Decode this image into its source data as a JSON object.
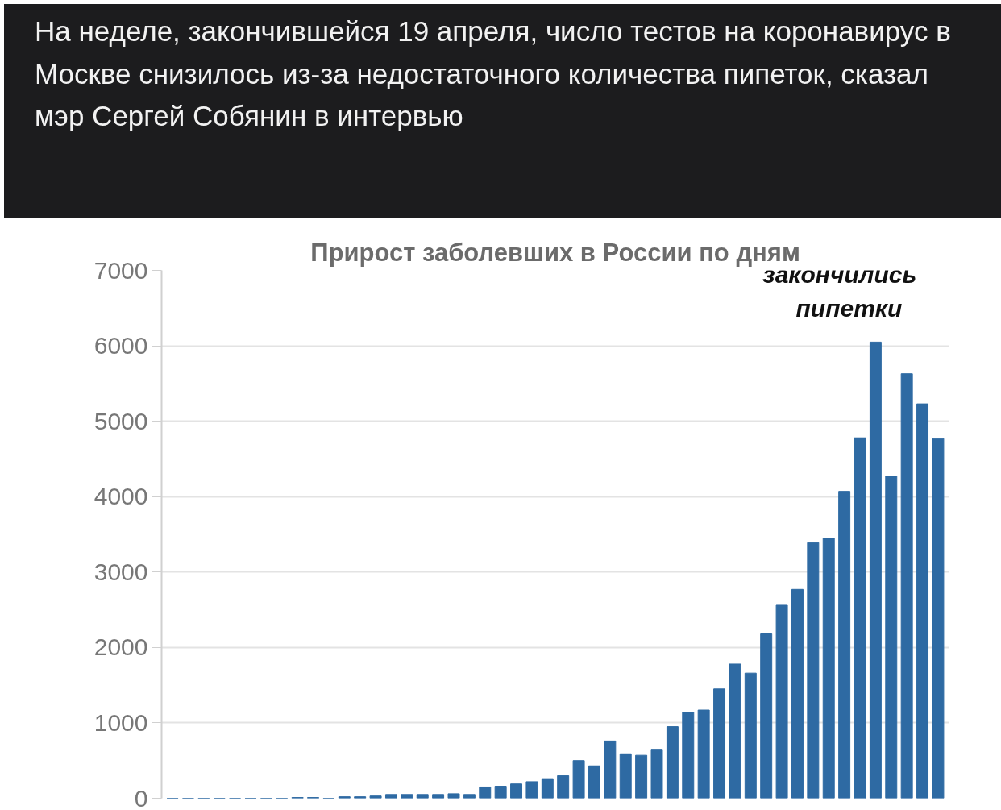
{
  "chart_data": {
    "type": "bar",
    "title": "На неделе, закончившейся 19 апреля, число тестов на коронавирус в Москве снизилось из-за недостаточного количества пипеток, сказал мэр Сергей Собянин в интервью",
    "subtitle": "Прирост заболевших в России по дням",
    "annotations": [
      "закончились пипетки"
    ],
    "categories": [
      null,
      null,
      null,
      null,
      null,
      null,
      null,
      null,
      null,
      null,
      null,
      null,
      null,
      null,
      null,
      null,
      null,
      null,
      null,
      null,
      null,
      null,
      null,
      null,
      null,
      null,
      null,
      null,
      null,
      null,
      null,
      null,
      null,
      null,
      null,
      null,
      null,
      null,
      null,
      null,
      null,
      null,
      null,
      null,
      null,
      null,
      null,
      null,
      null,
      null
    ],
    "values": [
      0,
      0,
      0,
      0,
      0,
      0,
      0,
      0,
      10,
      10,
      0,
      20,
      20,
      30,
      50,
      50,
      50,
      50,
      60,
      50,
      150,
      160,
      190,
      220,
      260,
      300,
      500,
      430,
      760,
      590,
      570,
      650,
      950,
      1140,
      1170,
      1450,
      1780,
      1660,
      2180,
      2560,
      2770,
      3390,
      3450,
      4070,
      4780,
      6050,
      4270,
      5630,
      5230,
      4770
    ],
    "color": "#2e6aa3",
    "ylim": [
      0,
      7000
    ],
    "yticks": [
      0,
      1000,
      2000,
      3000,
      4000,
      5000,
      6000,
      7000
    ],
    "grid": "y",
    "tick_labels": "y"
  }
}
